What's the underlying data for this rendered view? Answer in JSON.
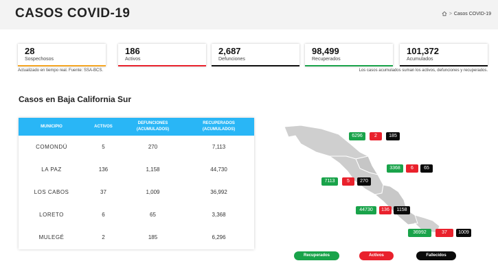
{
  "header": {
    "title": "CASOS COVID-19",
    "breadcrumb_separator": ">",
    "breadcrumb_current": "Casos COVID-19"
  },
  "stats": [
    {
      "value": "28",
      "label": "Sospechosos",
      "color": "#f5a623"
    },
    {
      "value": "186",
      "label": "Activos",
      "color": "#e9212c"
    },
    {
      "value": "2,687",
      "label": "Defunciones",
      "color": "#111111"
    },
    {
      "value": "98,499",
      "label": "Recuperados",
      "color": "#19a34a"
    },
    {
      "value": "101,372",
      "label": "Acumulados",
      "color": "#111111"
    }
  ],
  "notes": {
    "left": "Actualizado en tiempo real. Fuente: SSA-BCS.",
    "right": "Los casos acumulados suman los activos, defunciones y recuperados."
  },
  "section_title": "Casos en Baja California Sur",
  "table": {
    "headers": [
      [
        "MUNICIPIO"
      ],
      [
        "ACTIVOS"
      ],
      [
        "DEFUNCIONES",
        "(ACUMULADOS)"
      ],
      [
        "RECUPERADOS",
        "(ACUMULADOS)"
      ]
    ],
    "rows": [
      {
        "municipio": "COMONDÚ",
        "activos": "5",
        "defunciones": "270",
        "recuperados": "7,113"
      },
      {
        "municipio": "LA PAZ",
        "activos": "136",
        "defunciones": "1,158",
        "recuperados": "44,730"
      },
      {
        "municipio": "LOS CABOS",
        "activos": "37",
        "defunciones": "1,009",
        "recuperados": "36,992"
      },
      {
        "municipio": "LORETO",
        "activos": "6",
        "defunciones": "65",
        "recuperados": "3,368"
      },
      {
        "municipio": "MULEGÉ",
        "activos": "2",
        "defunciones": "185",
        "recuperados": "6,296"
      }
    ]
  },
  "map": {
    "mulege": {
      "recuperados": "6296",
      "activos": "2",
      "fallecidos": "185"
    },
    "loreto": {
      "recuperados": "3368",
      "activos": "6",
      "fallecidos": "65"
    },
    "comondu": {
      "recuperados": "7113",
      "activos": "5",
      "fallecidos": "270"
    },
    "lapaz": {
      "recuperados": "44730",
      "activos": "136",
      "fallecidos": "1158"
    },
    "loscabos": {
      "recuperados": "36992",
      "activos": "37",
      "fallecidos": "1009"
    }
  },
  "legend": {
    "recuperados": "Recuperados",
    "activos": "Activos",
    "fallecidos": "Fallecidos"
  },
  "colors": {
    "accent": "#29b6f6",
    "green": "#19a34a",
    "red": "#e9212c",
    "black": "#0a0a0a"
  }
}
